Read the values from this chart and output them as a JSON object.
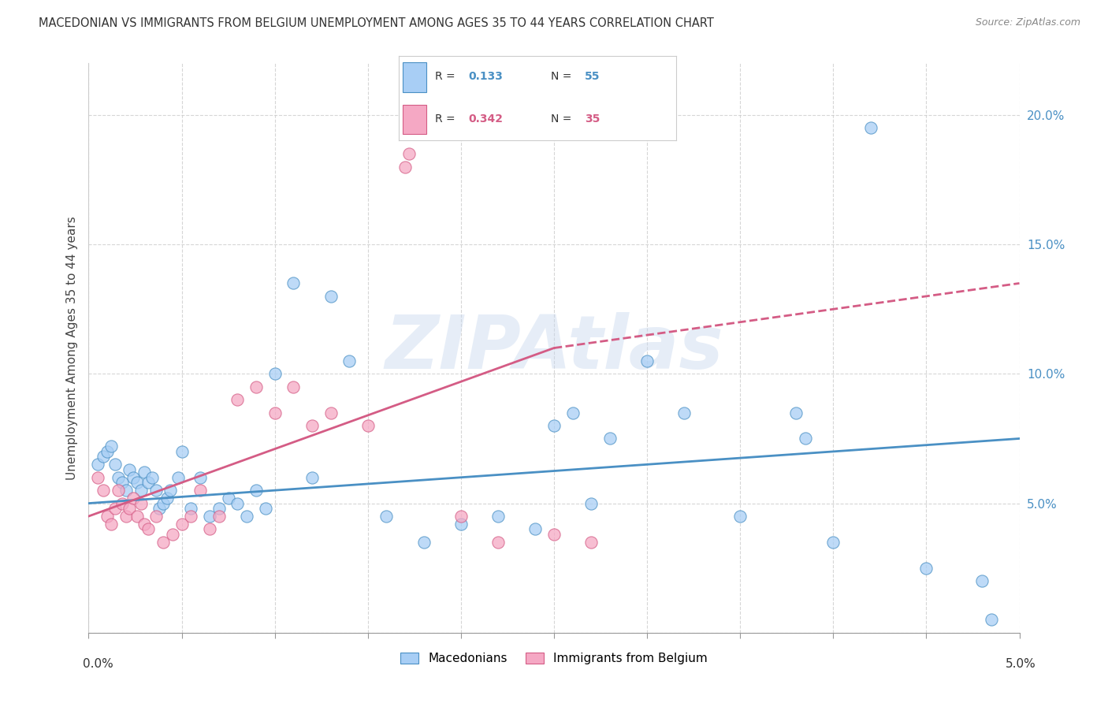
{
  "title": "MACEDONIAN VS IMMIGRANTS FROM BELGIUM UNEMPLOYMENT AMONG AGES 35 TO 44 YEARS CORRELATION CHART",
  "source": "Source: ZipAtlas.com",
  "ylabel": "Unemployment Among Ages 35 to 44 years",
  "xlim": [
    0.0,
    5.0
  ],
  "ylim": [
    0.0,
    22.0
  ],
  "yticks": [
    0.0,
    5.0,
    10.0,
    15.0,
    20.0
  ],
  "ytick_labels": [
    "",
    "5.0%",
    "10.0%",
    "15.0%",
    "20.0%"
  ],
  "blue_label": "Macedonians",
  "pink_label": "Immigrants from Belgium",
  "blue_R": "0.133",
  "blue_N": "55",
  "pink_R": "0.342",
  "pink_N": "35",
  "blue_color": "#a8cef5",
  "pink_color": "#f5a8c4",
  "blue_trend_color": "#4a90c4",
  "pink_trend_color": "#d45c85",
  "watermark": "ZIPAtlas",
  "blue_trend_x0": 0.0,
  "blue_trend_y0": 5.0,
  "blue_trend_x1": 5.0,
  "blue_trend_y1": 7.5,
  "pink_trend_x0": 0.0,
  "pink_trend_y0": 4.5,
  "pink_solid_x1": 2.5,
  "pink_solid_y1": 11.0,
  "pink_dash_x1": 5.0,
  "pink_dash_y1": 13.5,
  "blue_scatter_x": [
    0.05,
    0.08,
    0.1,
    0.12,
    0.14,
    0.16,
    0.18,
    0.2,
    0.22,
    0.24,
    0.26,
    0.28,
    0.3,
    0.32,
    0.34,
    0.36,
    0.38,
    0.4,
    0.42,
    0.44,
    0.48,
    0.5,
    0.55,
    0.6,
    0.65,
    0.7,
    0.75,
    0.8,
    0.85,
    0.9,
    0.95,
    1.0,
    1.1,
    1.2,
    1.3,
    1.4,
    1.6,
    1.8,
    2.0,
    2.2,
    2.4,
    2.6,
    2.7,
    2.8,
    3.0,
    3.2,
    3.5,
    3.8,
    4.0,
    4.2,
    4.5,
    4.8,
    4.85,
    3.85,
    2.5
  ],
  "blue_scatter_y": [
    6.5,
    6.8,
    7.0,
    7.2,
    6.5,
    6.0,
    5.8,
    5.5,
    6.3,
    6.0,
    5.8,
    5.5,
    6.2,
    5.8,
    6.0,
    5.5,
    4.8,
    5.0,
    5.2,
    5.5,
    6.0,
    7.0,
    4.8,
    6.0,
    4.5,
    4.8,
    5.2,
    5.0,
    4.5,
    5.5,
    4.8,
    10.0,
    13.5,
    6.0,
    13.0,
    10.5,
    4.5,
    3.5,
    4.2,
    4.5,
    4.0,
    8.5,
    5.0,
    7.5,
    10.5,
    8.5,
    4.5,
    8.5,
    3.5,
    19.5,
    2.5,
    2.0,
    0.5,
    7.5,
    8.0
  ],
  "pink_scatter_x": [
    0.05,
    0.08,
    0.1,
    0.12,
    0.14,
    0.16,
    0.18,
    0.2,
    0.22,
    0.24,
    0.26,
    0.28,
    0.3,
    0.32,
    0.36,
    0.4,
    0.45,
    0.5,
    0.55,
    0.6,
    0.65,
    0.7,
    0.8,
    0.9,
    1.0,
    1.1,
    1.2,
    1.3,
    1.5,
    1.7,
    1.72,
    2.0,
    2.2,
    2.5,
    2.7
  ],
  "pink_scatter_y": [
    6.0,
    5.5,
    4.5,
    4.2,
    4.8,
    5.5,
    5.0,
    4.5,
    4.8,
    5.2,
    4.5,
    5.0,
    4.2,
    4.0,
    4.5,
    3.5,
    3.8,
    4.2,
    4.5,
    5.5,
    4.0,
    4.5,
    9.0,
    9.5,
    8.5,
    9.5,
    8.0,
    8.5,
    8.0,
    18.0,
    18.5,
    4.5,
    3.5,
    3.8,
    3.5
  ]
}
